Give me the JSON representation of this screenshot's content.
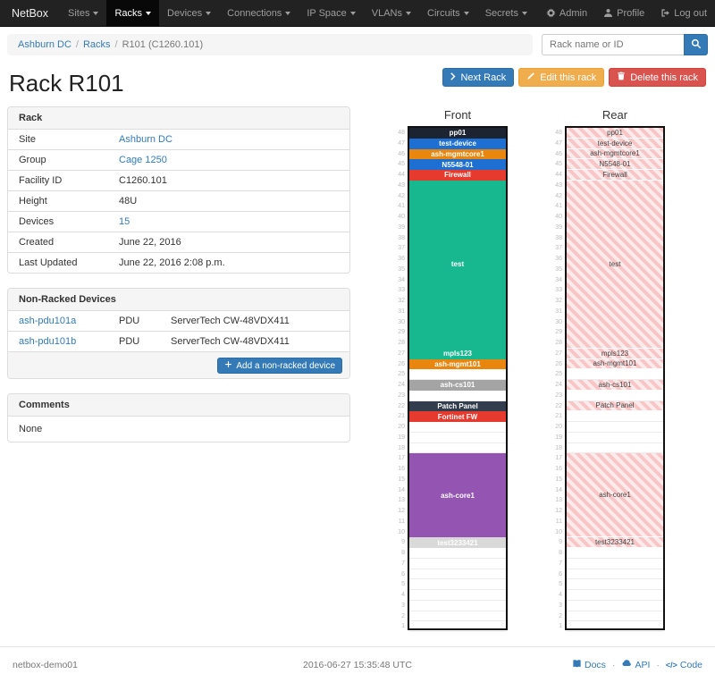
{
  "navbar": {
    "brand": "NetBox",
    "items": [
      {
        "label": "Sites"
      },
      {
        "label": "Racks",
        "active": true
      },
      {
        "label": "Devices"
      },
      {
        "label": "Connections"
      },
      {
        "label": "IP Space"
      },
      {
        "label": "VLANs"
      },
      {
        "label": "Circuits"
      },
      {
        "label": "Secrets"
      }
    ],
    "right_items": [
      {
        "label": "Admin",
        "icon": "gear-icon"
      },
      {
        "label": "Profile",
        "icon": "user-icon"
      },
      {
        "label": "Log out",
        "icon": "logout-icon"
      }
    ]
  },
  "breadcrumb": {
    "items": [
      {
        "label": "Ashburn DC",
        "link": true
      },
      {
        "label": "Racks",
        "link": true
      },
      {
        "label": "R101 (C1260.101)",
        "link": false
      }
    ]
  },
  "search": {
    "placeholder": "Rack name or ID"
  },
  "page": {
    "title": "Rack R101"
  },
  "actions": {
    "next_label": "Next Rack",
    "edit_label": "Edit this rack",
    "delete_label": "Delete this rack"
  },
  "rack_panel": {
    "title": "Rack",
    "rows": [
      {
        "label": "Site",
        "value": "Ashburn DC",
        "link": true
      },
      {
        "label": "Group",
        "value": "Cage 1250",
        "link": true
      },
      {
        "label": "Facility ID",
        "value": "C1260.101",
        "link": false
      },
      {
        "label": "Height",
        "value": "48U",
        "link": false
      },
      {
        "label": "Devices",
        "value": "15",
        "link": true
      },
      {
        "label": "Created",
        "value": "June 22, 2016",
        "link": false
      },
      {
        "label": "Last Updated",
        "value": "June 22, 2016 2:08 p.m.",
        "link": false
      }
    ]
  },
  "non_racked": {
    "title": "Non-Racked Devices",
    "rows": [
      {
        "name": "ash-pdu101a",
        "role": "PDU",
        "type": "ServerTech CW-48VDX411"
      },
      {
        "name": "ash-pdu101b",
        "role": "PDU",
        "type": "ServerTech CW-48VDX411"
      }
    ],
    "add_label": "Add a non-racked device"
  },
  "comments": {
    "title": "Comments",
    "body": "None"
  },
  "elevation": {
    "front_title": "Front",
    "rear_title": "Rear",
    "total_units": 48,
    "devices": [
      {
        "name": "pp01",
        "top_u": 48,
        "units": 1,
        "color": "#1b2430"
      },
      {
        "name": "test-device",
        "top_u": 47,
        "units": 1,
        "color": "#1d6fd2"
      },
      {
        "name": "ash-mgmtcore1",
        "top_u": 46,
        "units": 1,
        "color": "#e8860d"
      },
      {
        "name": "N5548-01",
        "top_u": 45,
        "units": 1,
        "color": "#1d6fd2"
      },
      {
        "name": "Firewall",
        "top_u": 44,
        "units": 1,
        "color": "#e63a2e"
      },
      {
        "name": "test",
        "top_u": 43,
        "units": 16,
        "color": "#17b890"
      },
      {
        "name": "mpls123",
        "top_u": 27,
        "units": 1,
        "color": "#17b890"
      },
      {
        "name": "ash-mgmt101",
        "top_u": 26,
        "units": 1,
        "color": "#e8860d"
      },
      {
        "name": "ash-cs101",
        "top_u": 24,
        "units": 1,
        "color": "#a4a4a4"
      },
      {
        "name": "Patch Panel",
        "top_u": 22,
        "units": 1,
        "color": "#323e4e"
      },
      {
        "name": "Fortinet FW",
        "top_u": 21,
        "units": 1,
        "color": "#e63a2e",
        "rear": false
      },
      {
        "name": "ash-core1",
        "top_u": 17,
        "units": 8,
        "color": "#9455b2"
      },
      {
        "name": "test3233421",
        "top_u": 9,
        "units": 1,
        "color": "#d9d9d9",
        "text_color": "#ffffff"
      }
    ]
  },
  "footer": {
    "hostname": "netbox-demo01",
    "timestamp": "2016-06-27 15:35:48 UTC",
    "links": [
      {
        "label": "Docs",
        "icon": "book-icon"
      },
      {
        "label": "API",
        "icon": "cloud-icon"
      },
      {
        "label": "Code",
        "icon": "code-icon"
      }
    ]
  }
}
